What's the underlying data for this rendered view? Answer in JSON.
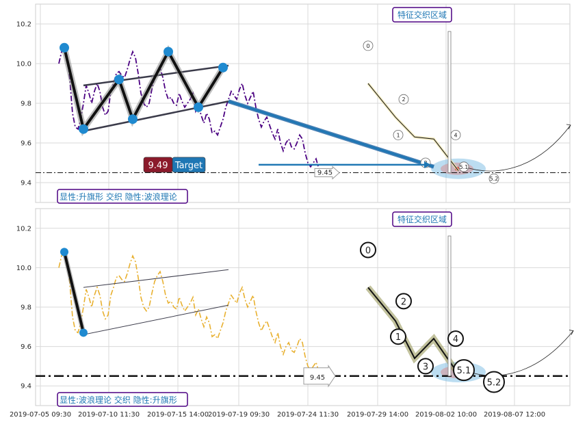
{
  "chart_data": {
    "type": "line",
    "x_ticks": [
      "2019-07-05 09:30",
      "2019-07-10 11:30",
      "2019-07-15 14:00",
      "2019-07-19 09:30",
      "2019-07-24 11:30",
      "2019-07-29 14:00",
      "2019-08-02 10:00",
      "2019-08-07 12:00"
    ],
    "y_ticks": [
      "9.4",
      "9.6",
      "9.8",
      "10.0",
      "10.2"
    ],
    "ylim": [
      9.3,
      10.3
    ],
    "grid": true,
    "panels": [
      {
        "top_label": "特征交织区域",
        "bottom_label": "显性:升旗形 交织 隐性:波浪理论",
        "price_color": "#4b0082",
        "price_style": "dashdot",
        "price": [
          10.0,
          10.06,
          10.08,
          10.04,
          9.92,
          9.75,
          9.68,
          9.67,
          9.72,
          9.8,
          9.89,
          9.85,
          9.8,
          9.86,
          9.9,
          9.86,
          9.78,
          9.74,
          9.76,
          9.86,
          9.9,
          9.95,
          9.96,
          9.94,
          9.93,
          9.97,
          10.02,
          10.06,
          10.03,
          9.95,
          9.85,
          9.8,
          9.78,
          9.8,
          9.87,
          9.93,
          9.96,
          9.98,
          9.93,
          9.86,
          9.82,
          9.83,
          9.8,
          9.79,
          9.85,
          9.81,
          9.78,
          9.8,
          9.82,
          9.85,
          9.76,
          9.79,
          9.74,
          9.7,
          9.75,
          9.72,
          9.65,
          9.66,
          9.64,
          9.68,
          9.72,
          9.78,
          9.82,
          9.86,
          9.84,
          9.82,
          9.87,
          9.9,
          9.84,
          9.8,
          9.83,
          9.86,
          9.78,
          9.72,
          9.68,
          9.71,
          9.73,
          9.69,
          9.65,
          9.62,
          9.67,
          9.6,
          9.56,
          9.6,
          9.62,
          9.58,
          9.57,
          9.6,
          9.64,
          9.62,
          9.55,
          9.5,
          9.48,
          9.5,
          9.52,
          9.47,
          9.46
        ],
        "pattern": [
          [
            2,
            10.08
          ],
          [
            9,
            9.67
          ],
          [
            22,
            9.92
          ],
          [
            27,
            9.72
          ],
          [
            40,
            10.06
          ],
          [
            51,
            9.78
          ],
          [
            60,
            9.98
          ]
        ],
        "markers": [
          {
            "i": 2,
            "y": 10.08
          },
          {
            "i": 9,
            "y": 9.67
          },
          {
            "i": 22,
            "y": 9.92
          },
          {
            "i": 27,
            "y": 9.72
          },
          {
            "i": 40,
            "y": 10.06
          },
          {
            "i": 51,
            "y": 9.78
          },
          {
            "i": 60,
            "y": 9.98
          }
        ],
        "channel_upper": [
          [
            9,
            9.89
          ],
          [
            62,
            9.99
          ]
        ],
        "channel_lower": [
          [
            9,
            9.66
          ],
          [
            62,
            9.81
          ]
        ],
        "projection": [
          [
            62,
            9.81
          ],
          [
            137,
            9.48
          ]
        ],
        "target_value": "9.49",
        "target_text": "Target",
        "target_arrow": [
          [
            70,
            9.48
          ],
          [
            137,
            9.48
          ]
        ],
        "hline": 9.45,
        "hline_label": "9.45",
        "wave": [
          [
            113,
            9.9
          ],
          [
            123,
            9.73
          ],
          [
            130,
            9.63
          ],
          [
            137,
            9.62
          ],
          [
            146,
            9.46
          ]
        ],
        "wave_labels": [
          {
            "t": "0",
            "i": 113,
            "y": 10.09
          },
          {
            "t": "1",
            "i": 124,
            "y": 9.64
          },
          {
            "t": "2",
            "i": 126,
            "y": 9.82
          },
          {
            "t": "3",
            "i": 134,
            "y": 9.5
          },
          {
            "t": "4",
            "i": 145,
            "y": 9.64
          },
          {
            "t": "5.1",
            "i": 148,
            "y": 9.48
          },
          {
            "t": "5.2",
            "i": 159,
            "y": 9.42
          }
        ],
        "forecast": [
          [
            148,
            9.48
          ],
          [
            160,
            9.46
          ],
          [
            175,
            9.53
          ],
          [
            187,
            9.69
          ]
        ],
        "wave_small": true
      },
      {
        "top_label": "特征交织区域",
        "bottom_label": "显性:波浪理论 交织 隐性:升旗形",
        "price_color": "#e8b02f",
        "price_style": "dashdot",
        "price": [
          10.0,
          10.06,
          10.08,
          10.04,
          9.92,
          9.75,
          9.68,
          9.67,
          9.72,
          9.8,
          9.89,
          9.85,
          9.8,
          9.86,
          9.9,
          9.86,
          9.78,
          9.74,
          9.76,
          9.86,
          9.9,
          9.95,
          9.96,
          9.94,
          9.93,
          9.97,
          10.02,
          10.06,
          10.03,
          9.95,
          9.85,
          9.8,
          9.78,
          9.8,
          9.87,
          9.93,
          9.96,
          9.98,
          9.93,
          9.86,
          9.82,
          9.83,
          9.8,
          9.79,
          9.85,
          9.81,
          9.78,
          9.8,
          9.82,
          9.85,
          9.76,
          9.79,
          9.74,
          9.7,
          9.75,
          9.72,
          9.65,
          9.66,
          9.64,
          9.68,
          9.72,
          9.78,
          9.82,
          9.86,
          9.84,
          9.82,
          9.87,
          9.9,
          9.84,
          9.8,
          9.83,
          9.86,
          9.78,
          9.72,
          9.68,
          9.71,
          9.73,
          9.69,
          9.65,
          9.62,
          9.67,
          9.6,
          9.56,
          9.6,
          9.62,
          9.58,
          9.57,
          9.6,
          9.64,
          9.62,
          9.55,
          9.5,
          9.48,
          9.5,
          9.52,
          9.47,
          9.46
        ],
        "pattern": [
          [
            2,
            10.08
          ],
          [
            9,
            9.67
          ]
        ],
        "markers": [
          {
            "i": 2,
            "y": 10.08
          },
          {
            "i": 9,
            "y": 9.67
          }
        ],
        "channel_upper": [
          [
            9,
            9.9
          ],
          [
            62,
            9.99
          ]
        ],
        "channel_lower": [
          [
            9,
            9.66
          ],
          [
            62,
            9.81
          ]
        ],
        "hline": 9.45,
        "hline_label": "9.45",
        "wave": [
          [
            113,
            9.9
          ],
          [
            123,
            9.73
          ],
          [
            130,
            9.54
          ],
          [
            137,
            9.64
          ],
          [
            146,
            9.46
          ]
        ],
        "wave_labels": [
          {
            "t": "0",
            "i": 113,
            "y": 10.09
          },
          {
            "t": "1",
            "i": 124,
            "y": 9.65
          },
          {
            "t": "2",
            "i": 126,
            "y": 9.83
          },
          {
            "t": "3",
            "i": 134,
            "y": 9.5
          },
          {
            "t": "4",
            "i": 145,
            "y": 9.64
          },
          {
            "t": "5.1",
            "i": 148,
            "y": 9.48
          },
          {
            "t": "5.2",
            "i": 159,
            "y": 9.42
          }
        ],
        "forecast": [
          [
            148,
            9.48
          ],
          [
            160,
            9.45
          ],
          [
            175,
            9.52
          ],
          [
            188,
            9.68
          ]
        ],
        "wave_small": false
      }
    ]
  }
}
